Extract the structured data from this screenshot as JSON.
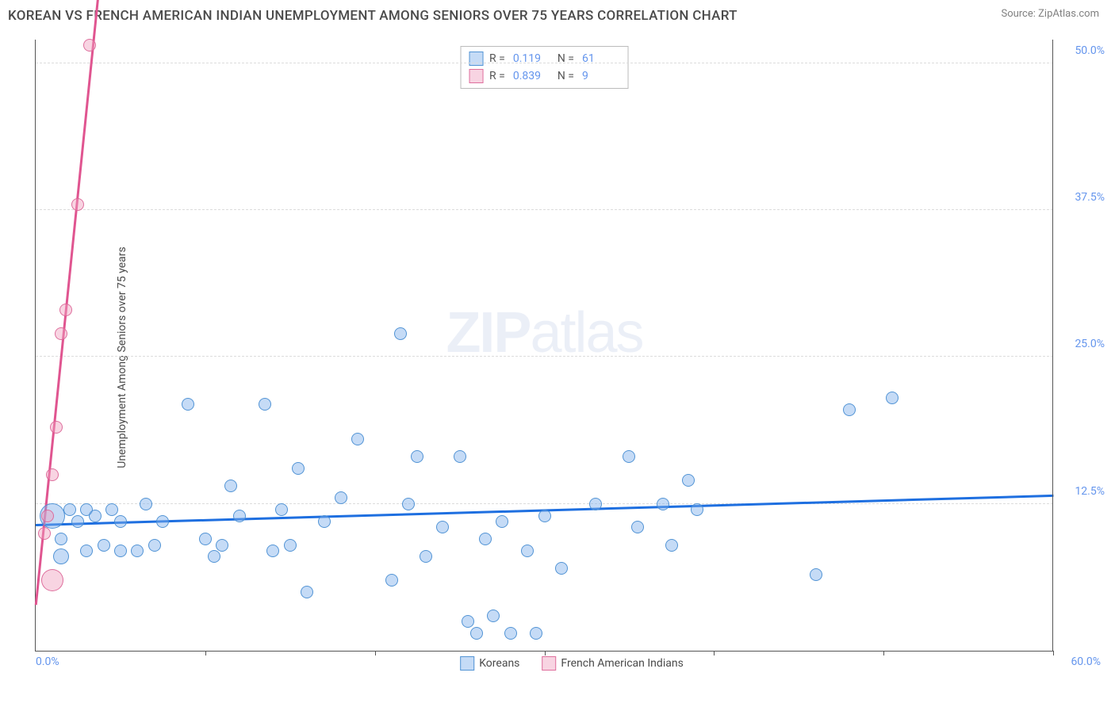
{
  "title": "KOREAN VS FRENCH AMERICAN INDIAN UNEMPLOYMENT AMONG SENIORS OVER 75 YEARS CORRELATION CHART",
  "source_prefix": "Source: ",
  "source_name": "ZipAtlas.com",
  "y_axis_title": "Unemployment Among Seniors over 75 years",
  "watermark_a": "ZIP",
  "watermark_b": "atlas",
  "chart": {
    "type": "scatter",
    "background_color": "#ffffff",
    "grid_color": "#dcdcdc",
    "axis_color": "#555555",
    "tick_label_color": "#6495ed",
    "tick_fontsize": 14,
    "xlim": [
      0,
      60
    ],
    "ylim": [
      0,
      52
    ],
    "x_ticks": [
      0,
      10,
      20,
      30,
      40,
      50,
      60
    ],
    "y_grid": [
      12.5,
      25.0,
      37.5,
      50.0
    ],
    "y_tick_labels": [
      "12.5%",
      "25.0%",
      "37.5%",
      "50.0%"
    ],
    "x_min_label": "0.0%",
    "x_max_label": "60.0%",
    "series": [
      {
        "name": "Koreans",
        "marker_fill": "rgba(127,176,234,0.45)",
        "marker_stroke": "rgba(70,140,210,0.9)",
        "marker_radius_default": 8,
        "trendline_color": "#1e6fe0",
        "trendline_width": 2.5,
        "trend_y_at_x0": 10.8,
        "trend_y_at_x60": 13.3,
        "R": "0.119",
        "N": "61",
        "points": [
          {
            "x": 1.0,
            "y": 11.5,
            "r": 16
          },
          {
            "x": 1.5,
            "y": 8.0,
            "r": 10
          },
          {
            "x": 1.5,
            "y": 9.5
          },
          {
            "x": 2.0,
            "y": 12.0
          },
          {
            "x": 2.5,
            "y": 11.0
          },
          {
            "x": 3.0,
            "y": 12.0
          },
          {
            "x": 3.0,
            "y": 8.5
          },
          {
            "x": 3.5,
            "y": 11.5
          },
          {
            "x": 4.0,
            "y": 9.0
          },
          {
            "x": 4.5,
            "y": 12.0
          },
          {
            "x": 5.0,
            "y": 8.5
          },
          {
            "x": 5.0,
            "y": 11.0
          },
          {
            "x": 6.0,
            "y": 8.5
          },
          {
            "x": 6.5,
            "y": 12.5
          },
          {
            "x": 7.0,
            "y": 9.0
          },
          {
            "x": 7.5,
            "y": 11.0
          },
          {
            "x": 9.0,
            "y": 21.0
          },
          {
            "x": 10.0,
            "y": 9.5
          },
          {
            "x": 10.5,
            "y": 8.0
          },
          {
            "x": 11.0,
            "y": 9.0
          },
          {
            "x": 11.5,
            "y": 14.0
          },
          {
            "x": 12.0,
            "y": 11.5
          },
          {
            "x": 13.5,
            "y": 21.0
          },
          {
            "x": 14.0,
            "y": 8.5
          },
          {
            "x": 14.5,
            "y": 12.0
          },
          {
            "x": 15.0,
            "y": 9.0
          },
          {
            "x": 15.5,
            "y": 15.5
          },
          {
            "x": 16.0,
            "y": 5.0
          },
          {
            "x": 17.0,
            "y": 11.0
          },
          {
            "x": 18.0,
            "y": 13.0
          },
          {
            "x": 19.0,
            "y": 18.0
          },
          {
            "x": 21.0,
            "y": 6.0
          },
          {
            "x": 21.5,
            "y": 27.0
          },
          {
            "x": 22.0,
            "y": 12.5
          },
          {
            "x": 22.5,
            "y": 16.5
          },
          {
            "x": 23.0,
            "y": 8.0
          },
          {
            "x": 24.0,
            "y": 10.5
          },
          {
            "x": 25.0,
            "y": 16.5
          },
          {
            "x": 25.5,
            "y": 2.5
          },
          {
            "x": 26.0,
            "y": 1.5
          },
          {
            "x": 26.5,
            "y": 9.5
          },
          {
            "x": 27.0,
            "y": 3.0
          },
          {
            "x": 27.5,
            "y": 11.0
          },
          {
            "x": 28.0,
            "y": 1.5
          },
          {
            "x": 29.0,
            "y": 8.5
          },
          {
            "x": 29.5,
            "y": 1.5
          },
          {
            "x": 30.0,
            "y": 11.5
          },
          {
            "x": 31.0,
            "y": 7.0
          },
          {
            "x": 33.0,
            "y": 12.5
          },
          {
            "x": 35.0,
            "y": 16.5
          },
          {
            "x": 35.5,
            "y": 10.5
          },
          {
            "x": 37.0,
            "y": 12.5
          },
          {
            "x": 37.5,
            "y": 9.0
          },
          {
            "x": 38.5,
            "y": 14.5
          },
          {
            "x": 39.0,
            "y": 12.0
          },
          {
            "x": 46.0,
            "y": 6.5
          },
          {
            "x": 48.0,
            "y": 20.5
          },
          {
            "x": 50.5,
            "y": 21.5
          }
        ]
      },
      {
        "name": "French American Indians",
        "marker_fill": "rgba(240,160,190,0.45)",
        "marker_stroke": "rgba(220,100,150,0.9)",
        "marker_radius_default": 8,
        "trendline_color": "#e05590",
        "trendline_width": 2.5,
        "trend_y_at_x0": 4.0,
        "trend_y_at_x60": 850,
        "R": "0.839",
        "N": "9",
        "points": [
          {
            "x": 0.5,
            "y": 10.0
          },
          {
            "x": 0.7,
            "y": 11.5
          },
          {
            "x": 1.0,
            "y": 6.0,
            "r": 14
          },
          {
            "x": 1.0,
            "y": 15.0
          },
          {
            "x": 1.2,
            "y": 19.0
          },
          {
            "x": 1.5,
            "y": 27.0
          },
          {
            "x": 1.8,
            "y": 29.0
          },
          {
            "x": 2.5,
            "y": 38.0
          },
          {
            "x": 3.2,
            "y": 51.5
          }
        ]
      }
    ]
  },
  "legend_top_labels": {
    "R": "R  =",
    "N": "N  ="
  },
  "legend_bottom": [
    {
      "label": "Koreans",
      "fill": "rgba(127,176,234,0.45)",
      "stroke": "rgba(70,140,210,0.9)"
    },
    {
      "label": "French American Indians",
      "fill": "rgba(240,160,190,0.45)",
      "stroke": "rgba(220,100,150,0.9)"
    }
  ]
}
